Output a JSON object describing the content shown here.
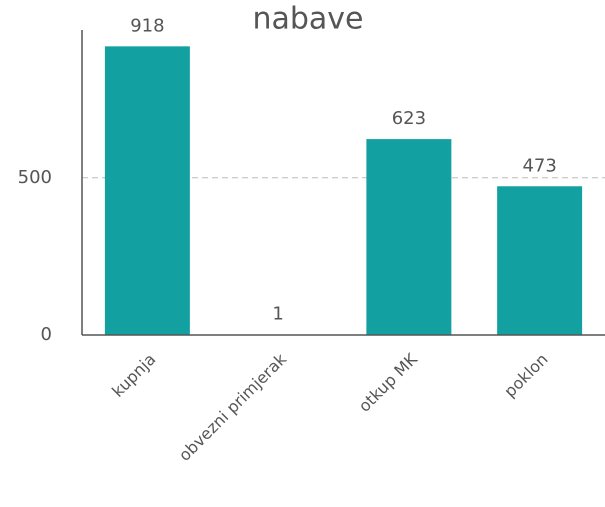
{
  "chart_data": {
    "type": "bar",
    "title": "nabave",
    "categories": [
      "kupnja",
      "obvezni primjerak",
      "otkup MK",
      "poklon"
    ],
    "values": [
      918,
      1,
      623,
      473
    ],
    "color": "#13a0a0",
    "ylim": [
      0,
      970
    ],
    "yticks": [
      0,
      500
    ],
    "grid": true
  }
}
